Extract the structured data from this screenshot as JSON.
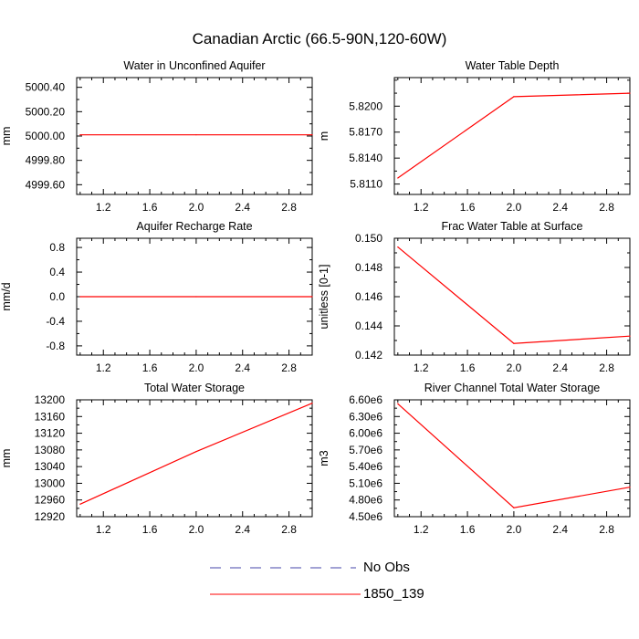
{
  "title": "Canadian Arctic (66.5-90N,120-60W)",
  "colors": {
    "model": "#ff0000",
    "obs": "#4444aa",
    "axis": "#000000"
  },
  "legend": [
    {
      "label": "No Obs",
      "style": "dashed",
      "color": "#4444aa"
    },
    {
      "label": "1850_139",
      "style": "solid",
      "color": "#ff0000"
    }
  ],
  "chart_data": [
    {
      "type": "line",
      "title": "Water in Unconfined Aquifer",
      "ylabel": "mm",
      "xlim": [
        0.97,
        3.0
      ],
      "ylim": [
        4999.52,
        5000.48
      ],
      "xticks": [
        1.2,
        1.6,
        2.0,
        2.4,
        2.8
      ],
      "xtick_labels": [
        "1.2",
        "1.6",
        "2.0",
        "2.4",
        "2.8"
      ],
      "yticks": [
        4999.6,
        4999.8,
        5000.0,
        5000.2,
        5000.4
      ],
      "ytick_labels": [
        "4999.60",
        "4999.80",
        "5000.00",
        "5000.20",
        "5000.40"
      ],
      "series": [
        {
          "name": "1850_139",
          "x": [
            1,
            2,
            3
          ],
          "y": [
            5000.01,
            5000.01,
            5000.01
          ]
        }
      ]
    },
    {
      "type": "line",
      "title": "Water Table Depth",
      "ylabel": "m",
      "xlim": [
        0.97,
        3.0
      ],
      "ylim": [
        5.8098,
        5.8233
      ],
      "xticks": [
        1.2,
        1.6,
        2.0,
        2.4,
        2.8
      ],
      "xtick_labels": [
        "1.2",
        "1.6",
        "2.0",
        "2.4",
        "2.8"
      ],
      "yticks": [
        5.811,
        5.814,
        5.817,
        5.82
      ],
      "ytick_labels": [
        "5.8110",
        "5.8140",
        "5.8170",
        "5.8200"
      ],
      "series": [
        {
          "name": "1850_139",
          "x": [
            1,
            2,
            3
          ],
          "y": [
            5.8117,
            5.8211,
            5.8215
          ]
        }
      ]
    },
    {
      "type": "line",
      "title": "Aquifer Recharge Rate",
      "ylabel": "mm/d",
      "xlim": [
        0.97,
        3.0
      ],
      "ylim": [
        -0.95,
        0.95
      ],
      "xticks": [
        1.2,
        1.6,
        2.0,
        2.4,
        2.8
      ],
      "xtick_labels": [
        "1.2",
        "1.6",
        "2.0",
        "2.4",
        "2.8"
      ],
      "yticks": [
        -0.8,
        -0.4,
        0.0,
        0.4,
        0.8
      ],
      "ytick_labels": [
        "-0.8",
        "-0.4",
        "0.0",
        "0.4",
        "0.8"
      ],
      "series": [
        {
          "name": "1850_139",
          "x": [
            1,
            2,
            3
          ],
          "y": [
            0.0,
            0.0,
            0.0
          ]
        }
      ]
    },
    {
      "type": "line",
      "title": "Frac Water Table at Surface",
      "ylabel": "unitless [0-1]",
      "xlim": [
        0.97,
        3.0
      ],
      "ylim": [
        0.142,
        0.15
      ],
      "xticks": [
        1.2,
        1.6,
        2.0,
        2.4,
        2.8
      ],
      "xtick_labels": [
        "1.2",
        "1.6",
        "2.0",
        "2.4",
        "2.8"
      ],
      "yticks": [
        0.142,
        0.144,
        0.146,
        0.148,
        0.15
      ],
      "ytick_labels": [
        "0.142",
        "0.144",
        "0.146",
        "0.148",
        "0.150"
      ],
      "series": [
        {
          "name": "1850_139",
          "x": [
            1,
            2,
            3
          ],
          "y": [
            0.1494,
            0.1428,
            0.1433
          ]
        }
      ]
    },
    {
      "type": "line",
      "title": "Total Water Storage",
      "ylabel": "mm",
      "xlim": [
        0.97,
        3.0
      ],
      "ylim": [
        12920,
        13200
      ],
      "xticks": [
        1.2,
        1.6,
        2.0,
        2.4,
        2.8
      ],
      "xtick_labels": [
        "1.2",
        "1.6",
        "2.0",
        "2.4",
        "2.8"
      ],
      "yticks": [
        12920,
        12960,
        13000,
        13040,
        13080,
        13120,
        13160,
        13200
      ],
      "ytick_labels": [
        "12920",
        "12960",
        "13000",
        "13040",
        "13080",
        "13120",
        "13160",
        "13200"
      ],
      "series": [
        {
          "name": "1850_139",
          "x": [
            1,
            2,
            3
          ],
          "y": [
            12950,
            13076,
            13192
          ]
        }
      ]
    },
    {
      "type": "line",
      "title": "River Channel Total Water Storage",
      "ylabel": "m3",
      "xlim": [
        0.97,
        3.0
      ],
      "ylim": [
        4500000,
        6600000
      ],
      "xticks": [
        1.2,
        1.6,
        2.0,
        2.4,
        2.8
      ],
      "xtick_labels": [
        "1.2",
        "1.6",
        "2.0",
        "2.4",
        "2.8"
      ],
      "yticks": [
        4500000,
        4800000,
        5100000,
        5400000,
        5700000,
        6000000,
        6300000,
        6600000
      ],
      "ytick_labels": [
        "4.50e6",
        "4.80e6",
        "5.10e6",
        "5.40e6",
        "5.70e6",
        "6.00e6",
        "6.30e6",
        "6.60e6"
      ],
      "series": [
        {
          "name": "1850_139",
          "x": [
            1,
            2,
            3
          ],
          "y": [
            6530000,
            4660000,
            5030000
          ]
        }
      ]
    }
  ]
}
